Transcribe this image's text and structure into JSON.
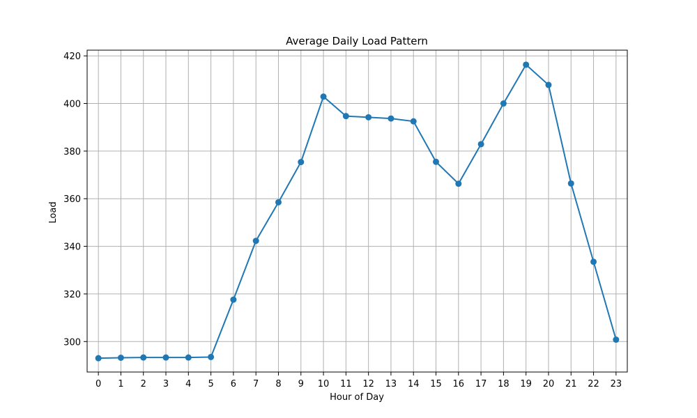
{
  "chart_data": {
    "type": "line",
    "title": "Average Daily Load Pattern",
    "xlabel": "Hour of Day",
    "ylabel": "Load",
    "x": [
      0,
      1,
      2,
      3,
      4,
      5,
      6,
      7,
      8,
      9,
      10,
      11,
      12,
      13,
      14,
      15,
      16,
      17,
      18,
      19,
      20,
      21,
      22,
      23
    ],
    "series": [
      {
        "values": [
          293.0,
          293.2,
          293.3,
          293.3,
          293.3,
          293.5,
          317.6,
          342.3,
          358.5,
          375.4,
          402.9,
          394.7,
          394.2,
          393.7,
          392.5,
          375.5,
          366.3,
          382.9,
          400.0,
          416.3,
          407.8,
          366.4,
          333.5,
          300.8
        ]
      }
    ],
    "xlim": [
      -0.5,
      23.5
    ],
    "ylim": [
      287.2,
      422.4
    ],
    "x_ticks": [
      0,
      1,
      2,
      3,
      4,
      5,
      6,
      7,
      8,
      9,
      10,
      11,
      12,
      13,
      14,
      15,
      16,
      17,
      18,
      19,
      20,
      21,
      22,
      23
    ],
    "y_ticks": [
      300,
      320,
      340,
      360,
      380,
      400,
      420
    ],
    "grid": true,
    "line_color": "#1f77b4",
    "marker": "circle"
  }
}
